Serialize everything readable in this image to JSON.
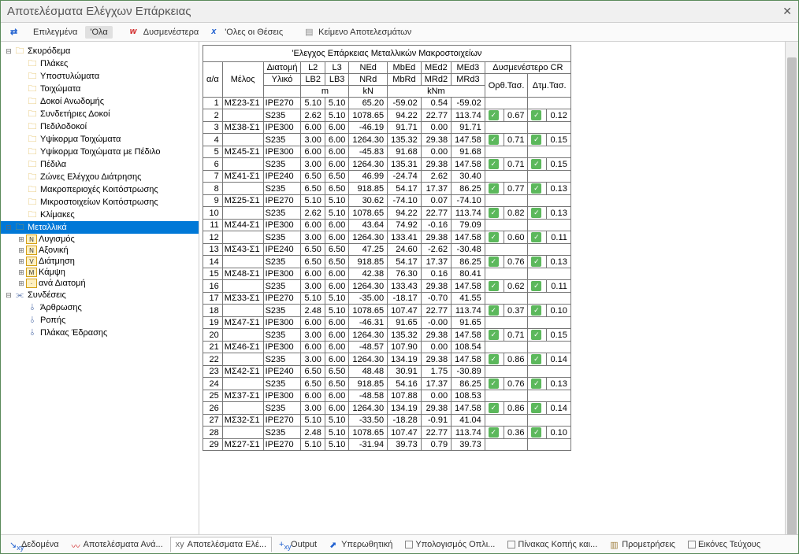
{
  "window": {
    "title": "Αποτελέσματα Ελέγχων Επάρκειας"
  },
  "toolbar": {
    "selected_label": "Επιλεγμένα",
    "all_label": "'Ολα",
    "worst_label": "Δυσμενέστερα",
    "all_positions_label": "'Ολες οι Θέσεις",
    "text_results_label": "Κείμενο Αποτελεσμάτων"
  },
  "tree": {
    "concrete": {
      "label": "Σκυρόδεμα",
      "children": [
        "Πλάκες",
        "Υποστυλώματα",
        "Τοιχώματα",
        "Δοκοί Ανωδομής",
        "Συνδετήριες Δοκοί",
        "Πεδιλοδοκοί",
        "Υψίκορμα Τοιχώματα",
        "Υψίκορμα Τοιχώματα με Πέδιλο",
        "Πέδιλα",
        "Ζώνες Ελέγχου Διάτρησης",
        "Μακροπεριοχές Κοιτόστρωσης",
        "Μικροστοιχείων Κοιτόστρωσης",
        "Κλίμακες"
      ]
    },
    "metal": {
      "label": "Μεταλλικά",
      "children": [
        "Λυγισμός",
        "Αξονική",
        "Διάτμηση",
        "Κάμψη",
        "ανά Διατομή"
      ]
    },
    "connections": {
      "label": "Συνδέσεις",
      "children": [
        "Άρθρωσης",
        "Ροπής",
        "Πλάκας Έδρασης"
      ]
    }
  },
  "table": {
    "title": "'Ελεγχος Επάρκειας Μεταλλικών Μακροστοιχείων",
    "headers": {
      "aa": "α/α",
      "melos": "Μέλος",
      "diatomi": "Διατομή",
      "yliko": "Υλικό",
      "L2": "L2",
      "L3": "L3",
      "LB2": "LB2",
      "LB3": "LB3",
      "NEd": "NEd",
      "NRd": "NRd",
      "MbEd": "MbEd",
      "MbRd": "MbRd",
      "MEd2": "MEd2",
      "MRd2": "MRd2",
      "MEd3": "MEd3",
      "MRd3": "MRd3",
      "cr": "Δυσμενέστερο CR",
      "orth": "Ορθ.Τασ.",
      "dtm": "Δτμ.Τασ.",
      "m": "m",
      "kN": "kN",
      "kNm": "kNm"
    },
    "rows": [
      {
        "i": 1,
        "melos": "ΜΣ23-Σ1",
        "sec": "IPE270",
        "L2": "5.10",
        "L3": "5.10",
        "NEd": "65.20",
        "MbEd": "-59.02",
        "MEd2": "0.54",
        "MEd3": "-59.02"
      },
      {
        "i": 2,
        "melos": "",
        "sec": "S235",
        "L2": "2.62",
        "L3": "5.10",
        "NEd": "1078.65",
        "MbEd": "94.22",
        "MEd2": "22.77",
        "MEd3": "113.74",
        "orth": "0.67",
        "dtm": "0.12"
      },
      {
        "i": 3,
        "melos": "ΜΣ38-Σ1",
        "sec": "IPE300",
        "L2": "6.00",
        "L3": "6.00",
        "NEd": "-46.19",
        "MbEd": "91.71",
        "MEd2": "0.00",
        "MEd3": "91.71"
      },
      {
        "i": 4,
        "melos": "",
        "sec": "S235",
        "L2": "3.00",
        "L3": "6.00",
        "NEd": "1264.30",
        "MbEd": "135.32",
        "MEd2": "29.38",
        "MEd3": "147.58",
        "orth": "0.71",
        "dtm": "0.15"
      },
      {
        "i": 5,
        "melos": "ΜΣ45-Σ1",
        "sec": "IPE300",
        "L2": "6.00",
        "L3": "6.00",
        "NEd": "-45.83",
        "MbEd": "91.68",
        "MEd2": "0.00",
        "MEd3": "91.68"
      },
      {
        "i": 6,
        "melos": "",
        "sec": "S235",
        "L2": "3.00",
        "L3": "6.00",
        "NEd": "1264.30",
        "MbEd": "135.31",
        "MEd2": "29.38",
        "MEd3": "147.58",
        "orth": "0.71",
        "dtm": "0.15"
      },
      {
        "i": 7,
        "melos": "ΜΣ41-Σ1",
        "sec": "IPE240",
        "L2": "6.50",
        "L3": "6.50",
        "NEd": "46.99",
        "MbEd": "-24.74",
        "MEd2": "2.62",
        "MEd3": "30.40"
      },
      {
        "i": 8,
        "melos": "",
        "sec": "S235",
        "L2": "6.50",
        "L3": "6.50",
        "NEd": "918.85",
        "MbEd": "54.17",
        "MEd2": "17.37",
        "MEd3": "86.25",
        "orth": "0.77",
        "dtm": "0.13"
      },
      {
        "i": 9,
        "melos": "ΜΣ25-Σ1",
        "sec": "IPE270",
        "L2": "5.10",
        "L3": "5.10",
        "NEd": "30.62",
        "MbEd": "-74.10",
        "MEd2": "0.07",
        "MEd3": "-74.10"
      },
      {
        "i": 10,
        "melos": "",
        "sec": "S235",
        "L2": "2.62",
        "L3": "5.10",
        "NEd": "1078.65",
        "MbEd": "94.22",
        "MEd2": "22.77",
        "MEd3": "113.74",
        "orth": "0.82",
        "dtm": "0.13"
      },
      {
        "i": 11,
        "melos": "ΜΣ44-Σ1",
        "sec": "IPE300",
        "L2": "6.00",
        "L3": "6.00",
        "NEd": "43.64",
        "MbEd": "74.92",
        "MEd2": "-0.16",
        "MEd3": "79.09"
      },
      {
        "i": 12,
        "melos": "",
        "sec": "S235",
        "L2": "3.00",
        "L3": "6.00",
        "NEd": "1264.30",
        "MbEd": "133.41",
        "MEd2": "29.38",
        "MEd3": "147.58",
        "orth": "0.60",
        "dtm": "0.11"
      },
      {
        "i": 13,
        "melos": "ΜΣ43-Σ1",
        "sec": "IPE240",
        "L2": "6.50",
        "L3": "6.50",
        "NEd": "47.25",
        "MbEd": "24.60",
        "MEd2": "-2.62",
        "MEd3": "-30.48"
      },
      {
        "i": 14,
        "melos": "",
        "sec": "S235",
        "L2": "6.50",
        "L3": "6.50",
        "NEd": "918.85",
        "MbEd": "54.17",
        "MEd2": "17.37",
        "MEd3": "86.25",
        "orth": "0.76",
        "dtm": "0.13"
      },
      {
        "i": 15,
        "melos": "ΜΣ48-Σ1",
        "sec": "IPE300",
        "L2": "6.00",
        "L3": "6.00",
        "NEd": "42.38",
        "MbEd": "76.30",
        "MEd2": "0.16",
        "MEd3": "80.41"
      },
      {
        "i": 16,
        "melos": "",
        "sec": "S235",
        "L2": "3.00",
        "L3": "6.00",
        "NEd": "1264.30",
        "MbEd": "133.43",
        "MEd2": "29.38",
        "MEd3": "147.58",
        "orth": "0.62",
        "dtm": "0.11"
      },
      {
        "i": 17,
        "melos": "ΜΣ33-Σ1",
        "sec": "IPE270",
        "L2": "5.10",
        "L3": "5.10",
        "NEd": "-35.00",
        "MbEd": "-18.17",
        "MEd2": "-0.70",
        "MEd3": "41.55"
      },
      {
        "i": 18,
        "melos": "",
        "sec": "S235",
        "L2": "2.48",
        "L3": "5.10",
        "NEd": "1078.65",
        "MbEd": "107.47",
        "MEd2": "22.77",
        "MEd3": "113.74",
        "orth": "0.37",
        "dtm": "0.10"
      },
      {
        "i": 19,
        "melos": "ΜΣ47-Σ1",
        "sec": "IPE300",
        "L2": "6.00",
        "L3": "6.00",
        "NEd": "-46.31",
        "MbEd": "91.65",
        "MEd2": "-0.00",
        "MEd3": "91.65"
      },
      {
        "i": 20,
        "melos": "",
        "sec": "S235",
        "L2": "3.00",
        "L3": "6.00",
        "NEd": "1264.30",
        "MbEd": "135.32",
        "MEd2": "29.38",
        "MEd3": "147.58",
        "orth": "0.71",
        "dtm": "0.15"
      },
      {
        "i": 21,
        "melos": "ΜΣ46-Σ1",
        "sec": "IPE300",
        "L2": "6.00",
        "L3": "6.00",
        "NEd": "-48.57",
        "MbEd": "107.90",
        "MEd2": "0.00",
        "MEd3": "108.54"
      },
      {
        "i": 22,
        "melos": "",
        "sec": "S235",
        "L2": "3.00",
        "L3": "6.00",
        "NEd": "1264.30",
        "MbEd": "134.19",
        "MEd2": "29.38",
        "MEd3": "147.58",
        "orth": "0.86",
        "dtm": "0.14"
      },
      {
        "i": 23,
        "melos": "ΜΣ42-Σ1",
        "sec": "IPE240",
        "L2": "6.50",
        "L3": "6.50",
        "NEd": "48.48",
        "MbEd": "30.91",
        "MEd2": "1.75",
        "MEd3": "-30.89"
      },
      {
        "i": 24,
        "melos": "",
        "sec": "S235",
        "L2": "6.50",
        "L3": "6.50",
        "NEd": "918.85",
        "MbEd": "54.16",
        "MEd2": "17.37",
        "MEd3": "86.25",
        "orth": "0.76",
        "dtm": "0.13"
      },
      {
        "i": 25,
        "melos": "ΜΣ37-Σ1",
        "sec": "IPE300",
        "L2": "6.00",
        "L3": "6.00",
        "NEd": "-48.58",
        "MbEd": "107.88",
        "MEd2": "0.00",
        "MEd3": "108.53"
      },
      {
        "i": 26,
        "melos": "",
        "sec": "S235",
        "L2": "3.00",
        "L3": "6.00",
        "NEd": "1264.30",
        "MbEd": "134.19",
        "MEd2": "29.38",
        "MEd3": "147.58",
        "orth": "0.86",
        "dtm": "0.14"
      },
      {
        "i": 27,
        "melos": "ΜΣ32-Σ1",
        "sec": "IPE270",
        "L2": "5.10",
        "L3": "5.10",
        "NEd": "-33.50",
        "MbEd": "-18.28",
        "MEd2": "-0.91",
        "MEd3": "41.04"
      },
      {
        "i": 28,
        "melos": "",
        "sec": "S235",
        "L2": "2.48",
        "L3": "5.10",
        "NEd": "1078.65",
        "MbEd": "107.47",
        "MEd2": "22.77",
        "MEd3": "113.74",
        "orth": "0.36",
        "dtm": "0.10"
      },
      {
        "i": 29,
        "melos": "ΜΣ27-Σ1",
        "sec": "IPE270",
        "L2": "5.10",
        "L3": "5.10",
        "NEd": "-31.94",
        "MbEd": "39.73",
        "MEd2": "0.79",
        "MEd3": "39.73"
      }
    ]
  },
  "statusbar": {
    "data": "Δεδομένα",
    "analysis_results": "Αποτελέσματα Ανά...",
    "check_results": "Αποτελέσματα Ελέ...",
    "output": "Output",
    "pushover": "Υπερωθητική",
    "reinforcement": "Υπολογισμός Οπλι...",
    "cutting_table": "Πίνακας Κοπής και...",
    "takeoffs": "Προμετρήσεις",
    "drawings": "Εικόνες Τεύχους"
  }
}
